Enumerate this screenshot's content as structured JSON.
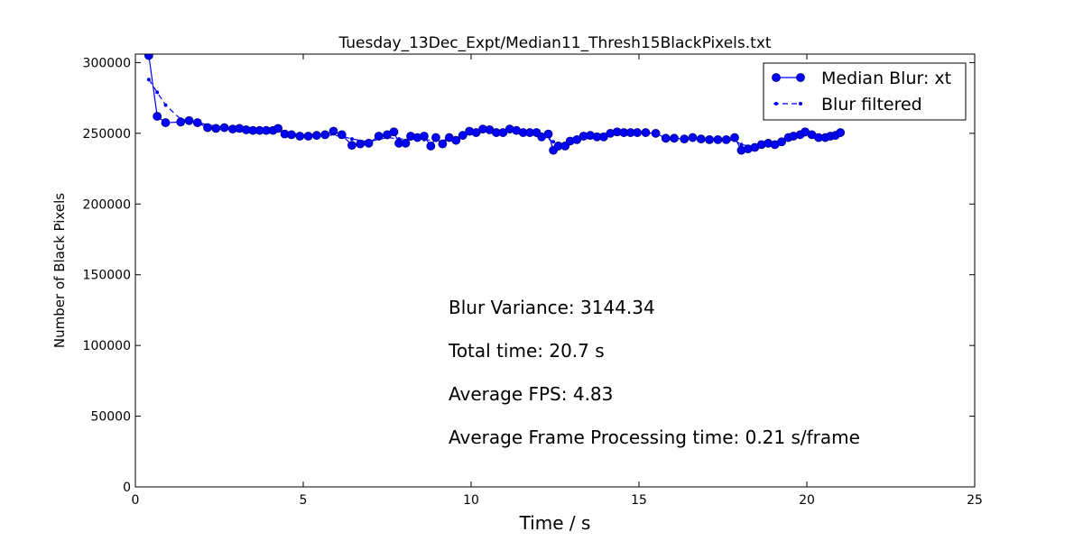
{
  "chart_data": {
    "type": "line",
    "title": "Tuesday_13Dec_Expt/Median11_Thresh15BlackPixels.txt",
    "xlabel": "Time / s",
    "ylabel": "Number of Black Pixels",
    "xlim": [
      0,
      25
    ],
    "ylim": [
      0,
      306000
    ],
    "xticks": [
      0,
      5,
      10,
      15,
      20,
      25
    ],
    "yticks": [
      0,
      50000,
      100000,
      150000,
      200000,
      250000,
      300000
    ],
    "grid": false,
    "legend": "top-right",
    "color": "#0000ff",
    "series": [
      {
        "name": "Median Blur: xt",
        "style": "solid-circle",
        "points": [
          [
            0.4,
            305000
          ],
          [
            0.65,
            262000
          ],
          [
            0.9,
            257500
          ],
          [
            1.35,
            258000
          ],
          [
            1.6,
            259000
          ],
          [
            1.85,
            257500
          ],
          [
            2.15,
            254000
          ],
          [
            2.4,
            253500
          ],
          [
            2.65,
            254000
          ],
          [
            2.9,
            253000
          ],
          [
            3.1,
            253500
          ],
          [
            3.3,
            252500
          ],
          [
            3.5,
            252000
          ],
          [
            3.7,
            252000
          ],
          [
            3.9,
            252000
          ],
          [
            4.1,
            252000
          ],
          [
            4.25,
            253500
          ],
          [
            4.45,
            249500
          ],
          [
            4.65,
            249000
          ],
          [
            4.9,
            248000
          ],
          [
            5.15,
            248000
          ],
          [
            5.4,
            248500
          ],
          [
            5.65,
            249000
          ],
          [
            5.9,
            251500
          ],
          [
            6.15,
            249000
          ],
          [
            6.45,
            241500
          ],
          [
            6.7,
            242500
          ],
          [
            6.95,
            243000
          ],
          [
            7.25,
            248000
          ],
          [
            7.5,
            249000
          ],
          [
            7.7,
            251000
          ],
          [
            7.85,
            243000
          ],
          [
            8.05,
            243000
          ],
          [
            8.2,
            248000
          ],
          [
            8.4,
            247000
          ],
          [
            8.6,
            248000
          ],
          [
            8.8,
            241000
          ],
          [
            8.95,
            247000
          ],
          [
            9.15,
            242500
          ],
          [
            9.35,
            247000
          ],
          [
            9.55,
            245000
          ],
          [
            9.75,
            248500
          ],
          [
            9.95,
            251500
          ],
          [
            10.15,
            250500
          ],
          [
            10.35,
            253000
          ],
          [
            10.55,
            252500
          ],
          [
            10.75,
            250500
          ],
          [
            10.95,
            250500
          ],
          [
            11.15,
            253000
          ],
          [
            11.35,
            252000
          ],
          [
            11.55,
            250500
          ],
          [
            11.75,
            250500
          ],
          [
            11.95,
            250500
          ],
          [
            12.1,
            247500
          ],
          [
            12.3,
            249500
          ],
          [
            12.45,
            238000
          ],
          [
            12.6,
            241000
          ],
          [
            12.8,
            241000
          ],
          [
            12.95,
            244500
          ],
          [
            13.15,
            245500
          ],
          [
            13.35,
            248000
          ],
          [
            13.55,
            248500
          ],
          [
            13.75,
            247500
          ],
          [
            13.95,
            247500
          ],
          [
            14.15,
            250000
          ],
          [
            14.35,
            251000
          ],
          [
            14.55,
            250500
          ],
          [
            14.75,
            250500
          ],
          [
            14.95,
            250500
          ],
          [
            15.2,
            250500
          ],
          [
            15.5,
            250000
          ],
          [
            15.8,
            246500
          ],
          [
            16.05,
            246500
          ],
          [
            16.35,
            246000
          ],
          [
            16.6,
            247000
          ],
          [
            16.85,
            246000
          ],
          [
            17.1,
            245500
          ],
          [
            17.35,
            245500
          ],
          [
            17.6,
            245500
          ],
          [
            17.85,
            247000
          ],
          [
            18.05,
            238000
          ],
          [
            18.25,
            239000
          ],
          [
            18.45,
            240000
          ],
          [
            18.65,
            242000
          ],
          [
            18.85,
            243000
          ],
          [
            19.05,
            242000
          ],
          [
            19.25,
            244000
          ],
          [
            19.45,
            247000
          ],
          [
            19.6,
            248000
          ],
          [
            19.8,
            249000
          ],
          [
            19.95,
            251000
          ],
          [
            20.15,
            249000
          ],
          [
            20.35,
            247000
          ],
          [
            20.55,
            247000
          ],
          [
            20.7,
            248000
          ],
          [
            20.85,
            248500
          ],
          [
            21.0,
            250500
          ]
        ]
      },
      {
        "name": "Blur filtered",
        "style": "dashed-dot",
        "points": [
          [
            0.4,
            288000
          ],
          [
            0.65,
            279000
          ],
          [
            0.9,
            270000
          ],
          [
            1.35,
            260000
          ],
          [
            1.85,
            257500
          ],
          [
            2.4,
            255000
          ],
          [
            2.9,
            254000
          ],
          [
            3.5,
            253000
          ],
          [
            4.1,
            252500
          ],
          [
            4.65,
            250000
          ],
          [
            5.15,
            248500
          ],
          [
            5.65,
            249000
          ],
          [
            6.15,
            248000
          ],
          [
            6.45,
            246000
          ],
          [
            6.95,
            244000
          ],
          [
            7.5,
            247000
          ],
          [
            7.85,
            246000
          ],
          [
            8.2,
            246000
          ],
          [
            8.6,
            245500
          ],
          [
            8.95,
            245000
          ],
          [
            9.35,
            245500
          ],
          [
            9.75,
            247500
          ],
          [
            10.15,
            250000
          ],
          [
            10.55,
            251500
          ],
          [
            10.95,
            251500
          ],
          [
            11.35,
            251500
          ],
          [
            11.75,
            250500
          ],
          [
            12.1,
            249000
          ],
          [
            12.45,
            244000
          ],
          [
            12.8,
            242000
          ],
          [
            13.15,
            244000
          ],
          [
            13.55,
            247000
          ],
          [
            13.95,
            248000
          ],
          [
            14.35,
            250000
          ],
          [
            14.75,
            250500
          ],
          [
            15.2,
            250500
          ],
          [
            15.8,
            248000
          ],
          [
            16.35,
            246500
          ],
          [
            16.85,
            246000
          ],
          [
            17.35,
            245500
          ],
          [
            17.85,
            245000
          ],
          [
            18.05,
            242000
          ],
          [
            18.45,
            240500
          ],
          [
            18.85,
            242000
          ],
          [
            19.25,
            243500
          ],
          [
            19.6,
            246500
          ],
          [
            19.95,
            249000
          ],
          [
            20.35,
            248500
          ],
          [
            20.7,
            248000
          ],
          [
            21.0,
            249500
          ]
        ]
      }
    ],
    "annotations": [
      "Blur Variance: 3144.34",
      "Total time: 20.7 s",
      "Average FPS: 4.83",
      "Average Frame Processing time: 0.21 s/frame"
    ]
  }
}
